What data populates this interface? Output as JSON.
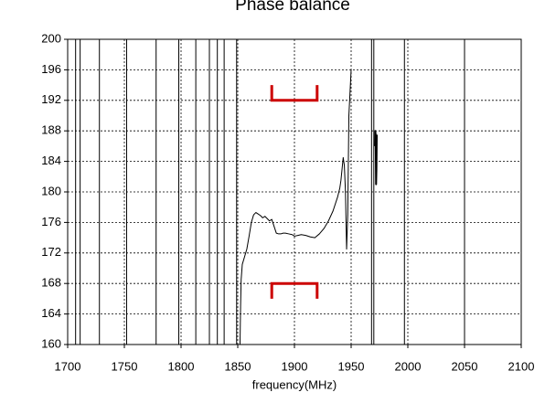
{
  "chart_data": {
    "type": "line",
    "title": "Phase balance",
    "xlabel": "frequency(MHz)",
    "ylabel": "",
    "xlim": [
      1700,
      2100
    ],
    "ylim": [
      160,
      200
    ],
    "grid": true,
    "x_ticks": [
      1700,
      1750,
      1800,
      1850,
      1900,
      1950,
      2000,
      2050,
      2100
    ],
    "y_ticks": [
      160,
      164,
      168,
      172,
      176,
      180,
      184,
      188,
      192,
      196,
      200
    ],
    "x_tick_labels": [
      "1700",
      "1750",
      "1800",
      "1850",
      "1900",
      "1950",
      "2000",
      "2050",
      "2100"
    ],
    "y_tick_labels": [
      "160",
      "164",
      "168",
      "172",
      "176",
      "180",
      "184",
      "188",
      "192",
      "196",
      "200"
    ],
    "vertical_traces_x": [
      1707,
      1711,
      1728,
      1752,
      1778,
      1798,
      1813,
      1825,
      1832,
      1838,
      1849,
      1968,
      1970,
      1997,
      2050
    ],
    "series": [
      {
        "color": "#000000",
        "x": [
          1852,
          1852.5,
          1853,
          1854,
          1856,
          1858,
          1860,
          1862,
          1864,
          1866,
          1868,
          1870,
          1872,
          1874,
          1876,
          1878,
          1880,
          1882,
          1884,
          1886,
          1888,
          1890,
          1892,
          1895,
          1898,
          1900,
          1903,
          1906,
          1910,
          1914,
          1918,
          1922,
          1926,
          1930,
          1934,
          1938,
          1940,
          1941,
          1942,
          1943,
          1944,
          1945,
          1945.5,
          1946,
          1947,
          1948,
          1950
        ],
        "y": [
          160,
          165,
          168.5,
          170.5,
          171.5,
          172.5,
          174.2,
          176,
          177,
          177.3,
          177.1,
          176.9,
          176.6,
          176.8,
          176.5,
          176.2,
          176.4,
          175.5,
          174.6,
          174.5,
          174.5,
          174.6,
          174.6,
          174.5,
          174.4,
          174.2,
          174.3,
          174.4,
          174.3,
          174.1,
          174,
          174.5,
          175.2,
          176.2,
          177.5,
          179.3,
          180.5,
          181.5,
          183,
          184.5,
          183.5,
          180,
          176,
          172.5,
          177,
          190,
          196
        ]
      },
      {
        "color": "#000000",
        "x": [
          1971,
          1971.3,
          1971.6,
          1972,
          1972.3,
          1972.6
        ],
        "y": [
          186,
          188,
          187.5,
          181,
          183,
          187.5
        ]
      }
    ],
    "annotations": [
      {
        "shape": "bracket-down",
        "color": "#cc0000",
        "x": [
          1880,
          1920
        ],
        "y_base": 192,
        "y_tip": 194
      },
      {
        "shape": "bracket-up",
        "color": "#cc0000",
        "x": [
          1880,
          1920
        ],
        "y_base": 168,
        "y_tip": 166
      }
    ]
  }
}
